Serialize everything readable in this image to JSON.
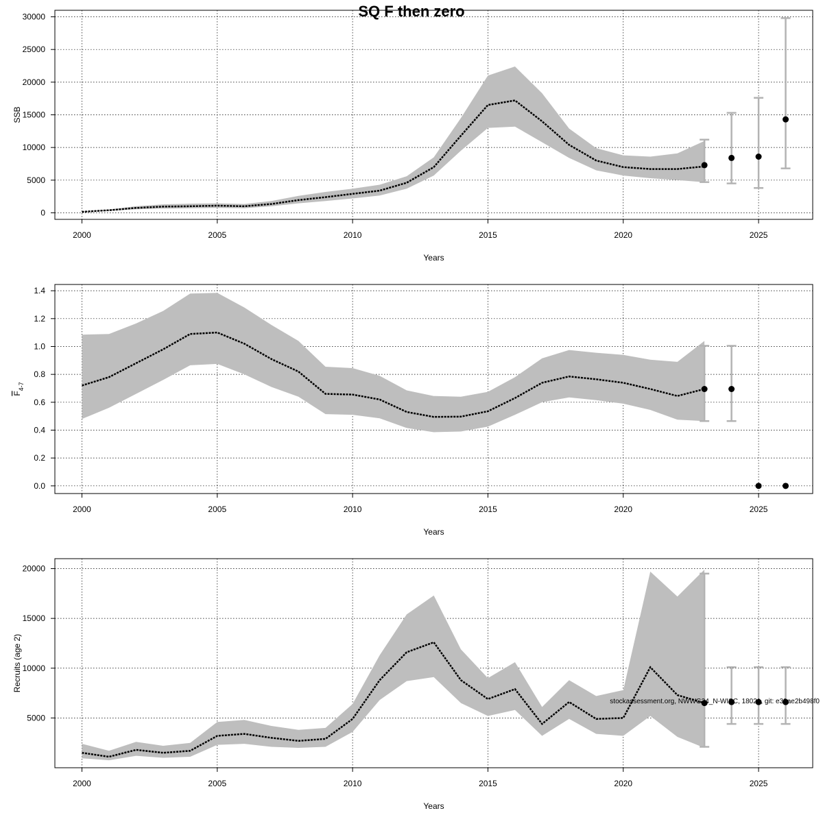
{
  "figure": {
    "title": "SQ F then zero",
    "watermark": "stockassessment.org, NWWG24_N-WISC, 18021, git: e39ae2b498f0"
  },
  "chart_data": [
    {
      "type": "line",
      "xlabel": "Years",
      "ylabel": "SSB",
      "xlim": [
        1999,
        2027
      ],
      "ylim": [
        -1000,
        31000
      ],
      "xticks": [
        2000,
        2005,
        2010,
        2015,
        2020,
        2025
      ],
      "yticks": [
        0,
        5000,
        10000,
        15000,
        20000,
        25000,
        30000
      ],
      "grid": true,
      "x": [
        2000,
        2001,
        2002,
        2003,
        2004,
        2005,
        2006,
        2007,
        2008,
        2009,
        2010,
        2011,
        2012,
        2013,
        2014,
        2015,
        2016,
        2017,
        2018,
        2019,
        2020,
        2021,
        2022,
        2023
      ],
      "series": [
        {
          "values": [
            150,
            400,
            750,
            950,
            1000,
            1100,
            1000,
            1350,
            1950,
            2400,
            2900,
            3400,
            4600,
            7000,
            11800,
            16500,
            17200,
            14000,
            10400,
            8000,
            7000,
            6700,
            6700,
            7100
          ]
        }
      ],
      "band": {
        "low": [
          100,
          300,
          550,
          650,
          700,
          750,
          700,
          1000,
          1450,
          1800,
          2200,
          2650,
          3700,
          5700,
          9500,
          13000,
          13200,
          10800,
          8400,
          6500,
          5700,
          5300,
          5000,
          4700
        ],
        "high": [
          200,
          500,
          1000,
          1300,
          1400,
          1450,
          1350,
          1800,
          2600,
          3200,
          3700,
          4300,
          5600,
          8500,
          14500,
          21000,
          22400,
          18300,
          12900,
          9900,
          8800,
          8600,
          9100,
          11000
        ]
      },
      "forecast": {
        "x": [
          2023,
          2024,
          2025,
          2026
        ],
        "median": [
          7300,
          8400,
          8600,
          14300
        ],
        "low": [
          4700,
          4500,
          3800,
          6800
        ],
        "high": [
          11200,
          15300,
          17600,
          29800
        ]
      }
    },
    {
      "type": "line",
      "xlabel": "Years",
      "ylabel_main": "F",
      "ylabel_sub": "4-7",
      "xlim": [
        1999,
        2027
      ],
      "ylim": [
        -0.055,
        1.445
      ],
      "xticks": [
        2000,
        2005,
        2010,
        2015,
        2020,
        2025
      ],
      "yticks": [
        0.0,
        0.2,
        0.4,
        0.6,
        0.8,
        1.0,
        1.2,
        1.4
      ],
      "ytick_labels": [
        "0.0",
        "0.2",
        "0.4",
        "0.6",
        "0.8",
        "1.0",
        "1.2",
        "1.4"
      ],
      "grid": true,
      "x": [
        2000,
        2001,
        2002,
        2003,
        2004,
        2005,
        2006,
        2007,
        2008,
        2009,
        2010,
        2011,
        2012,
        2013,
        2014,
        2015,
        2016,
        2017,
        2018,
        2019,
        2020,
        2021,
        2022,
        2023
      ],
      "series": [
        {
          "values": [
            0.72,
            0.78,
            0.88,
            0.98,
            1.09,
            1.1,
            1.02,
            0.91,
            0.82,
            0.66,
            0.655,
            0.62,
            0.53,
            0.495,
            0.497,
            0.535,
            0.63,
            0.74,
            0.785,
            0.765,
            0.74,
            0.695,
            0.645,
            0.695
          ]
        }
      ],
      "band": {
        "low": [
          0.48,
          0.56,
          0.66,
          0.76,
          0.865,
          0.875,
          0.8,
          0.71,
          0.64,
          0.515,
          0.51,
          0.485,
          0.415,
          0.385,
          0.39,
          0.425,
          0.51,
          0.6,
          0.635,
          0.615,
          0.59,
          0.545,
          0.475,
          0.465
        ],
        "high": [
          1.085,
          1.09,
          1.165,
          1.255,
          1.38,
          1.385,
          1.28,
          1.155,
          1.04,
          0.855,
          0.845,
          0.79,
          0.685,
          0.645,
          0.64,
          0.675,
          0.78,
          0.915,
          0.975,
          0.955,
          0.94,
          0.905,
          0.89,
          1.04
        ]
      },
      "forecast": {
        "x": [
          2023,
          2024,
          2025,
          2026
        ],
        "median": [
          0.695,
          0.695,
          0.0,
          0.0
        ],
        "low": [
          0.465,
          0.465,
          null,
          null
        ],
        "high": [
          1.005,
          1.005,
          null,
          null
        ]
      }
    },
    {
      "type": "line",
      "xlabel": "Years",
      "ylabel": "Recruits (age 2)",
      "xlim": [
        1999,
        2027
      ],
      "ylim": [
        0,
        21000
      ],
      "xticks": [
        2000,
        2005,
        2010,
        2015,
        2020,
        2025
      ],
      "yticks": [
        5000,
        10000,
        15000,
        20000
      ],
      "grid": true,
      "x": [
        2000,
        2001,
        2002,
        2003,
        2004,
        2005,
        2006,
        2007,
        2008,
        2009,
        2010,
        2011,
        2012,
        2013,
        2014,
        2015,
        2016,
        2017,
        2018,
        2019,
        2020,
        2021,
        2022,
        2023
      ],
      "series": [
        {
          "values": [
            1500,
            1100,
            1800,
            1500,
            1700,
            3200,
            3400,
            3000,
            2700,
            2900,
            4900,
            8800,
            11600,
            12600,
            8800,
            6900,
            7900,
            4400,
            6600,
            4900,
            5000,
            10100,
            7300,
            6500
          ]
        }
      ],
      "band": {
        "low": [
          950,
          750,
          1200,
          1000,
          1100,
          2300,
          2400,
          2100,
          2000,
          2100,
          3600,
          6800,
          8700,
          9100,
          6500,
          5200,
          5800,
          3200,
          4900,
          3400,
          3200,
          5200,
          3100,
          2000
        ],
        "high": [
          2400,
          1700,
          2600,
          2200,
          2500,
          4600,
          4800,
          4200,
          3800,
          4000,
          6400,
          11300,
          15400,
          17300,
          11900,
          9000,
          10600,
          6100,
          8800,
          7200,
          7800,
          19700,
          17200,
          19900
        ]
      },
      "forecast": {
        "x": [
          2023,
          2024,
          2025,
          2026
        ],
        "median": [
          6500,
          6600,
          6600,
          6600
        ],
        "low": [
          2100,
          4400,
          4400,
          4400
        ],
        "high": [
          19500,
          10100,
          10100,
          10100
        ]
      }
    }
  ]
}
